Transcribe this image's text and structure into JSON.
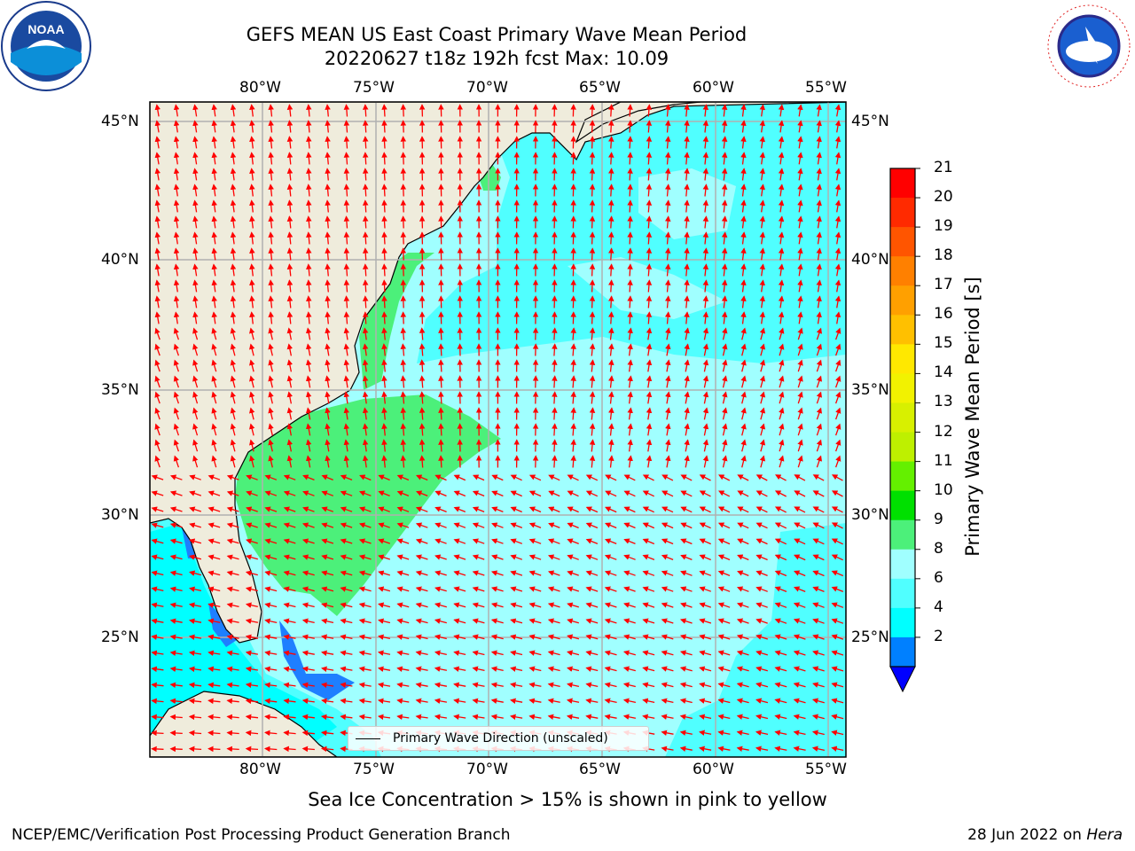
{
  "title": {
    "line1": "GEFS MEAN US East Coast Primary Wave Mean Period",
    "line2": "20220627 t18z 192h fcst   Max: 10.09"
  },
  "logos": {
    "left": {
      "name": "noaa-logo",
      "text": "NOAA"
    },
    "right": {
      "name": "nws-logo",
      "text": "NATIONAL WEATHER SERVICE"
    }
  },
  "axes": {
    "lon_labels": [
      "80°W",
      "75°W",
      "70°W",
      "65°W",
      "60°W",
      "55°W"
    ],
    "lat_labels": [
      "45°N",
      "40°N",
      "35°N",
      "30°N",
      "25°N"
    ],
    "lon_range": [
      -85,
      -54.3
    ],
    "lat_range": [
      20.4,
      46
    ]
  },
  "legend": {
    "label": "Primary Wave Direction (unscaled)"
  },
  "colorbar": {
    "label": "Primary Wave Mean Period [s]",
    "ticks": [
      "21",
      "20",
      "19",
      "18",
      "17",
      "16",
      "15",
      "14",
      "13",
      "12",
      "11",
      "10",
      "9",
      "8",
      "6",
      "4",
      "2"
    ],
    "colors": [
      "#ff0000",
      "#ff2a00",
      "#ff5500",
      "#ff8000",
      "#ffa000",
      "#ffc000",
      "#ffe800",
      "#f2f200",
      "#d8f000",
      "#bef000",
      "#64f000",
      "#00e000",
      "#4cf07a",
      "#a0ffff",
      "#50ffff",
      "#00ffff",
      "#0080ff",
      "#0000ff"
    ]
  },
  "subtitle": "Sea Ice Concentration > 15% is shown in pink to yellow",
  "footer": {
    "left": "NCEP/EMC/Verification Post Processing Product Generation Branch",
    "right_date": "28 Jun 2022 on ",
    "right_host": "Hera"
  },
  "colors": {
    "land": "#efecdc",
    "period_2_4": "#1e7fff",
    "period_4_6": "#00ffff",
    "period_6_8": "#50ffff",
    "period_8_9": "#a0ffff",
    "period_9_10": "#4cf07a",
    "arrow": "#ff0000",
    "grid": "#b0b0b0"
  }
}
